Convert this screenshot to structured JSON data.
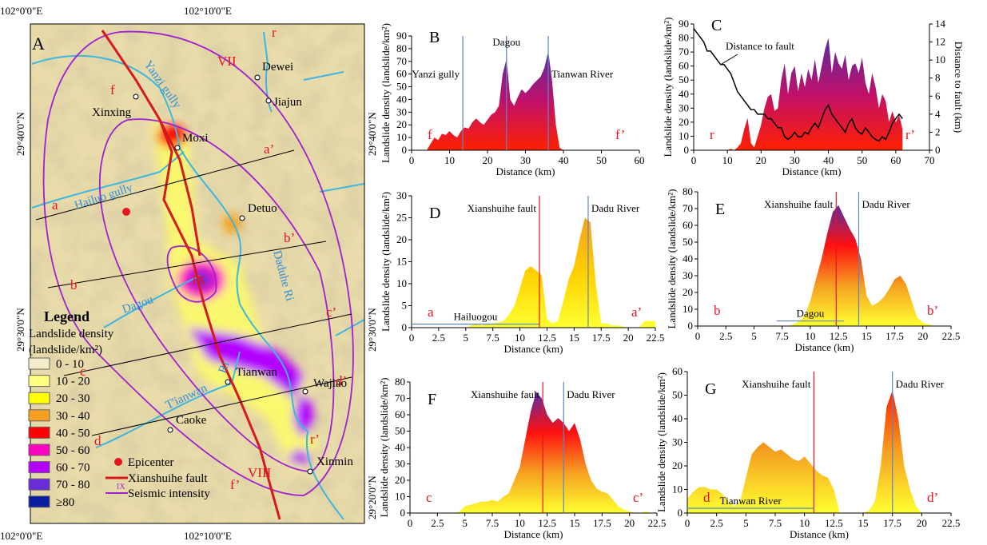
{
  "map": {
    "panel": "A",
    "lon_labels": [
      "102°0'0\"E",
      "102°10'0\"E"
    ],
    "lat_labels": [
      "29°40'0\"N",
      "29°30'0\"N",
      "29°20'0\"N"
    ],
    "intensity": [
      "VII",
      "VIII",
      "IX"
    ],
    "profile_labels": [
      "f",
      "f’",
      "a",
      "a’",
      "b",
      "b’",
      "c",
      "c’",
      "d",
      "d’",
      "r",
      "r’"
    ],
    "places": [
      "Dewei",
      "Jiajun",
      "Xinxing",
      "Moxi",
      "Detuo",
      "Tianwan",
      "Wajiao",
      "Caoke",
      "Xinmin"
    ],
    "rivers": [
      "Yanzi gully",
      "Hailuo gully",
      "Dagou",
      "Daduhe Ri",
      "T'ianwan",
      "Ri"
    ],
    "legend": {
      "title": "Legend",
      "heading": "Landslide density",
      "unit": "(landslide/km²)",
      "classes": [
        {
          "label": "0 - 10",
          "color": "#f3ecc8"
        },
        {
          "label": "10 - 20",
          "color": "#ffff80"
        },
        {
          "label": "20 - 30",
          "color": "#ffff00"
        },
        {
          "label": "30 - 40",
          "color": "#f5a020"
        },
        {
          "label": "40 - 50",
          "color": "#ff0000"
        },
        {
          "label": "50 - 60",
          "color": "#ff00c0"
        },
        {
          "label": "60 - 70",
          "color": "#b400ff"
        },
        {
          "label": "70 - 80",
          "color": "#6a2bd8"
        },
        {
          "label": "≥80",
          "color": "#0a1fa0"
        }
      ],
      "items": [
        {
          "label": "Epicenter",
          "color": "#e8141e"
        },
        {
          "label": "Xianshuihe fault",
          "color": "#d7191c"
        },
        {
          "label": "Seismic intensity",
          "color": "#a020d0",
          "symbol": "IX"
        }
      ]
    }
  },
  "chart_data": [
    {
      "type": "area",
      "panel": "B",
      "y_label": "Landslide density (landslide/km²)",
      "x_label": "Distance (km)",
      "start_label": "f",
      "end_label": "f’",
      "xlim": [
        0,
        60
      ],
      "xticks": [
        0,
        10,
        20,
        30,
        40,
        50,
        60
      ],
      "ylim": [
        0,
        90
      ],
      "yticks": [
        0,
        10,
        20,
        30,
        40,
        50,
        60,
        70,
        80,
        90
      ],
      "x": [
        0,
        4,
        5,
        6,
        7,
        8,
        9,
        10,
        11,
        12,
        13,
        14,
        15,
        16,
        17,
        18,
        19,
        20,
        21,
        22,
        23,
        24,
        25,
        26,
        27,
        28,
        29,
        30,
        31,
        32,
        33,
        34,
        35,
        36,
        37,
        38,
        39,
        40,
        41,
        60
      ],
      "series": [
        {
          "fill_colors": [
            "#ff2000",
            "#c0106a",
            "#5a2ca0"
          ],
          "values": [
            0,
            0,
            5,
            10,
            8,
            13,
            12,
            15,
            12,
            10,
            15,
            18,
            17,
            22,
            25,
            22,
            20,
            24,
            28,
            30,
            35,
            60,
            72,
            40,
            35,
            42,
            48,
            45,
            48,
            52,
            55,
            58,
            65,
            78,
            55,
            20,
            2,
            0,
            0,
            0
          ]
        }
      ],
      "markers": [
        {
          "label": "Yanzi gully",
          "x": 13.5,
          "color": "#5b86c5"
        },
        {
          "label": "Dagou",
          "x": 25,
          "color": "#5b86c5"
        },
        {
          "label": "Tianwan River",
          "x": 36,
          "color": "#5b86c5"
        }
      ]
    },
    {
      "type": "area",
      "panel": "C",
      "y_label": "Landslide density (landslide/km²)",
      "y2_label": "Distance to fault (km)",
      "x_label": "Distance (km)",
      "start_label": "r",
      "end_label": "r’",
      "xlim": [
        0,
        70
      ],
      "xticks": [
        0,
        10,
        20,
        30,
        40,
        50,
        60,
        70
      ],
      "ylim": [
        0,
        90
      ],
      "yticks": [
        0,
        10,
        20,
        30,
        40,
        50,
        60,
        70,
        80,
        90
      ],
      "y2lim": [
        0,
        14
      ],
      "y2ticks": [
        0,
        2,
        4,
        6,
        8,
        10,
        12,
        14
      ],
      "x": [
        0,
        1,
        2,
        3,
        4,
        5,
        6,
        7,
        8,
        9,
        10,
        11,
        12,
        13,
        14,
        15,
        16,
        17,
        18,
        19,
        20,
        21,
        22,
        23,
        24,
        25,
        26,
        27,
        28,
        29,
        30,
        31,
        32,
        33,
        34,
        35,
        36,
        37,
        38,
        39,
        40,
        41,
        42,
        43,
        44,
        45,
        46,
        47,
        48,
        49,
        50,
        51,
        52,
        53,
        54,
        55,
        56,
        57,
        58,
        59,
        60,
        61,
        62
      ],
      "series": [
        {
          "fill_colors": [
            "#ff2000",
            "#c0106a",
            "#5a2ca0"
          ],
          "values": [
            0,
            0,
            0,
            0,
            0,
            0,
            0,
            0,
            0,
            0,
            0,
            1,
            0,
            2,
            5,
            15,
            23,
            5,
            2,
            10,
            18,
            30,
            38,
            40,
            28,
            30,
            50,
            62,
            40,
            55,
            60,
            42,
            55,
            45,
            58,
            50,
            65,
            48,
            60,
            72,
            80,
            55,
            70,
            62,
            58,
            68,
            50,
            60,
            62,
            55,
            66,
            48,
            40,
            55,
            45,
            30,
            40,
            35,
            20,
            28,
            20,
            25,
            15
          ]
        },
        {
          "type": "line",
          "name": "Distance to fault",
          "axis": "y2",
          "color": "#000000",
          "values": [
            13.5,
            13,
            12.5,
            12,
            11,
            11,
            10.5,
            10,
            9.5,
            9.5,
            9,
            8.5,
            7.5,
            6.5,
            6,
            5.5,
            5,
            4.5,
            4.5,
            4,
            4,
            4,
            3.5,
            3.5,
            3,
            2.5,
            2.5,
            1.5,
            1.2,
            1.5,
            2,
            1.5,
            1.5,
            2,
            1.8,
            2.5,
            3,
            2.5,
            3.5,
            4.5,
            5,
            4,
            3.5,
            3,
            2.5,
            2,
            3,
            3.5,
            2.5,
            2,
            1.8,
            2.5,
            2,
            1.5,
            1.2,
            1,
            1.5,
            1.2,
            2,
            3,
            3.5,
            4,
            3.5
          ]
        }
      ]
    },
    {
      "type": "area",
      "panel": "D",
      "y_label": "Landslide density (landslide/km²)",
      "x_label": "Distance (km)",
      "start_label": "a",
      "end_label": "a’",
      "xlim": [
        0,
        22.5
      ],
      "xticks": [
        0,
        2.5,
        5,
        7.5,
        10,
        12.5,
        15,
        17.5,
        20,
        22.5
      ],
      "ylim": [
        0,
        30
      ],
      "yticks": [
        0,
        5,
        10,
        15,
        20,
        25,
        30
      ],
      "x": [
        0,
        0.5,
        1,
        1.5,
        2,
        2.5,
        3,
        3.5,
        4,
        4.5,
        5,
        5.5,
        6,
        6.5,
        7,
        7.5,
        8,
        8.5,
        9,
        9.5,
        10,
        10.5,
        11,
        11.5,
        12,
        12.5,
        13,
        13.5,
        14,
        14.5,
        15,
        15.5,
        16,
        16.5,
        17,
        17.5,
        18,
        18.5,
        19,
        19.5,
        20,
        20.5,
        21,
        21.5,
        22,
        22.5
      ],
      "series": [
        {
          "fill_colors": [
            "#ffff30",
            "#ffd000",
            "#f5a020"
          ],
          "values": [
            0,
            0,
            0,
            0,
            0,
            0,
            0,
            0,
            0,
            0,
            0,
            0.5,
            0.8,
            0.5,
            0.8,
            1,
            1.2,
            1.5,
            3,
            5,
            9,
            13,
            14,
            13,
            12,
            2,
            1,
            1.5,
            6,
            11,
            14,
            20,
            25,
            24,
            10,
            1,
            1,
            0.5,
            0.5,
            0.3,
            0,
            0,
            0,
            1.5,
            1.5,
            1.5
          ]
        }
      ],
      "markers": [
        {
          "label": "Xianshuihe fault",
          "x": 11.8,
          "color": "#e8141e"
        },
        {
          "label": "Dadu River",
          "x": 16.3,
          "color": "#5b86c5"
        }
      ],
      "hline": {
        "label": "Hailuogou",
        "x": [
          0,
          11.8
        ],
        "y": 0.8,
        "color": "#5b86c5"
      }
    },
    {
      "type": "area",
      "panel": "E",
      "y_label": "Landslide density (landslide/km²)",
      "x_label": "Distance (km)",
      "start_label": "b",
      "end_label": "b’",
      "xlim": [
        0,
        22.5
      ],
      "xticks": [
        0,
        2.5,
        5,
        7.5,
        10,
        12.5,
        15,
        17.5,
        20,
        22.5
      ],
      "ylim": [
        0,
        80
      ],
      "yticks": [
        0,
        10,
        20,
        30,
        40,
        50,
        60,
        70,
        80
      ],
      "x": [
        0,
        0.5,
        1,
        1.5,
        2,
        2.5,
        3,
        3.5,
        4,
        4.5,
        5,
        5.5,
        6,
        6.5,
        7,
        7.5,
        8,
        8.5,
        9,
        9.5,
        10,
        10.5,
        11,
        11.5,
        12,
        12.5,
        13,
        13.5,
        14,
        14.5,
        15,
        15.5,
        16,
        16.5,
        17,
        17.5,
        18,
        18.5,
        19,
        19.5,
        20,
        20.5,
        21,
        21.5,
        22,
        22.5
      ],
      "series": [
        {
          "fill_colors": [
            "#ffff30",
            "#f5a020",
            "#ff1010",
            "#5a2ca0"
          ],
          "values": [
            0,
            0,
            0,
            0,
            0,
            0,
            0,
            0,
            0,
            0,
            0,
            0,
            0,
            0,
            0,
            0,
            0,
            1,
            3,
            6,
            15,
            28,
            40,
            55,
            68,
            72,
            65,
            58,
            52,
            40,
            18,
            12,
            14,
            17,
            22,
            28,
            30,
            25,
            15,
            5,
            2,
            1,
            0,
            0,
            0,
            0
          ]
        }
      ],
      "markers": [
        {
          "label": "Xianshuihe fault",
          "x": 12.3,
          "color": "#e8141e"
        },
        {
          "label": "Dadu River",
          "x": 14.3,
          "color": "#5b86c5"
        }
      ],
      "hline": {
        "label": "Dagou",
        "x": [
          7,
          13
        ],
        "y": 3,
        "color": "#5b86c5"
      }
    },
    {
      "type": "area",
      "panel": "F",
      "y_label": "Landslide density (landslide/km²)",
      "x_label": "Distance (km)",
      "start_label": "c",
      "end_label": "c’",
      "xlim": [
        0,
        22.5
      ],
      "xticks": [
        0,
        2.5,
        5,
        7.5,
        10,
        12.5,
        15,
        17.5,
        20,
        22.5
      ],
      "ylim": [
        0,
        80
      ],
      "yticks": [
        0,
        10,
        20,
        30,
        40,
        50,
        60,
        70,
        80
      ],
      "x": [
        0,
        0.5,
        1,
        1.5,
        2,
        2.5,
        3,
        3.5,
        4,
        4.5,
        5,
        5.5,
        6,
        6.5,
        7,
        7.5,
        8,
        8.5,
        9,
        9.5,
        10,
        10.5,
        11,
        11.5,
        12,
        12.5,
        13,
        13.5,
        14,
        14.5,
        15,
        15.5,
        16,
        16.5,
        17,
        17.5,
        18,
        18.5,
        19,
        19.5,
        20,
        20.5,
        21,
        21.5,
        22,
        22.5
      ],
      "series": [
        {
          "fill_colors": [
            "#ffff30",
            "#f5a020",
            "#ff1010",
            "#5a2ca0"
          ],
          "values": [
            0,
            0,
            0,
            0,
            0,
            0,
            0,
            0,
            0,
            1,
            4,
            5,
            6,
            7,
            7,
            8,
            7,
            10,
            12,
            20,
            28,
            45,
            62,
            74,
            70,
            60,
            55,
            58,
            55,
            50,
            55,
            45,
            30,
            20,
            15,
            13,
            12,
            8,
            4,
            2,
            1,
            0,
            0,
            1,
            0,
            0
          ]
        }
      ],
      "markers": [
        {
          "label": "Xianshuihe fault",
          "x": 12.1,
          "color": "#e8141e"
        },
        {
          "label": "Dadu River",
          "x": 14,
          "color": "#5b86c5"
        }
      ]
    },
    {
      "type": "area",
      "panel": "G",
      "y_label": "Landslide density (landslide/km²)",
      "x_label": "Distance (km)",
      "start_label": "d",
      "end_label": "d’",
      "xlim": [
        0,
        22.5
      ],
      "xticks": [
        0,
        2.5,
        5,
        7.5,
        10,
        12.5,
        15,
        17.5,
        20,
        22.5
      ],
      "ylim": [
        0,
        60
      ],
      "yticks": [
        0,
        10,
        20,
        30,
        40,
        50,
        60
      ],
      "x": [
        0,
        0.5,
        1,
        1.5,
        2,
        2.5,
        3,
        3.5,
        4,
        4.5,
        5,
        5.5,
        6,
        6.5,
        7,
        7.5,
        8,
        8.5,
        9,
        9.5,
        10,
        10.5,
        11,
        11.5,
        12,
        12.5,
        13,
        13.5,
        14,
        14.5,
        15,
        15.5,
        16,
        16.5,
        17,
        17.5,
        18,
        18.5,
        19,
        19.5,
        20,
        20.5,
        21,
        21.5,
        22,
        22.5
      ],
      "series": [
        {
          "fill_colors": [
            "#ffff30",
            "#f5a020",
            "#ff2000"
          ],
          "values": [
            6,
            9,
            11,
            11,
            10,
            10,
            8,
            5,
            3,
            5,
            15,
            25,
            28,
            30,
            28,
            26,
            27,
            25,
            23,
            22,
            24,
            21,
            18,
            16,
            15,
            10,
            0,
            0,
            0,
            0,
            0,
            1,
            5,
            20,
            45,
            52,
            40,
            20,
            10,
            3,
            0,
            0,
            0,
            0,
            0,
            0
          ]
        }
      ],
      "markers": [
        {
          "label": "Xianshuihe fault",
          "x": 10.8,
          "color": "#e8141e"
        },
        {
          "label": "Dadu River",
          "x": 17.5,
          "color": "#5b86c5"
        }
      ],
      "hline": {
        "label": "Tianwan River",
        "x": [
          0,
          10.8
        ],
        "y": 2,
        "color": "#5b86c5"
      }
    }
  ]
}
